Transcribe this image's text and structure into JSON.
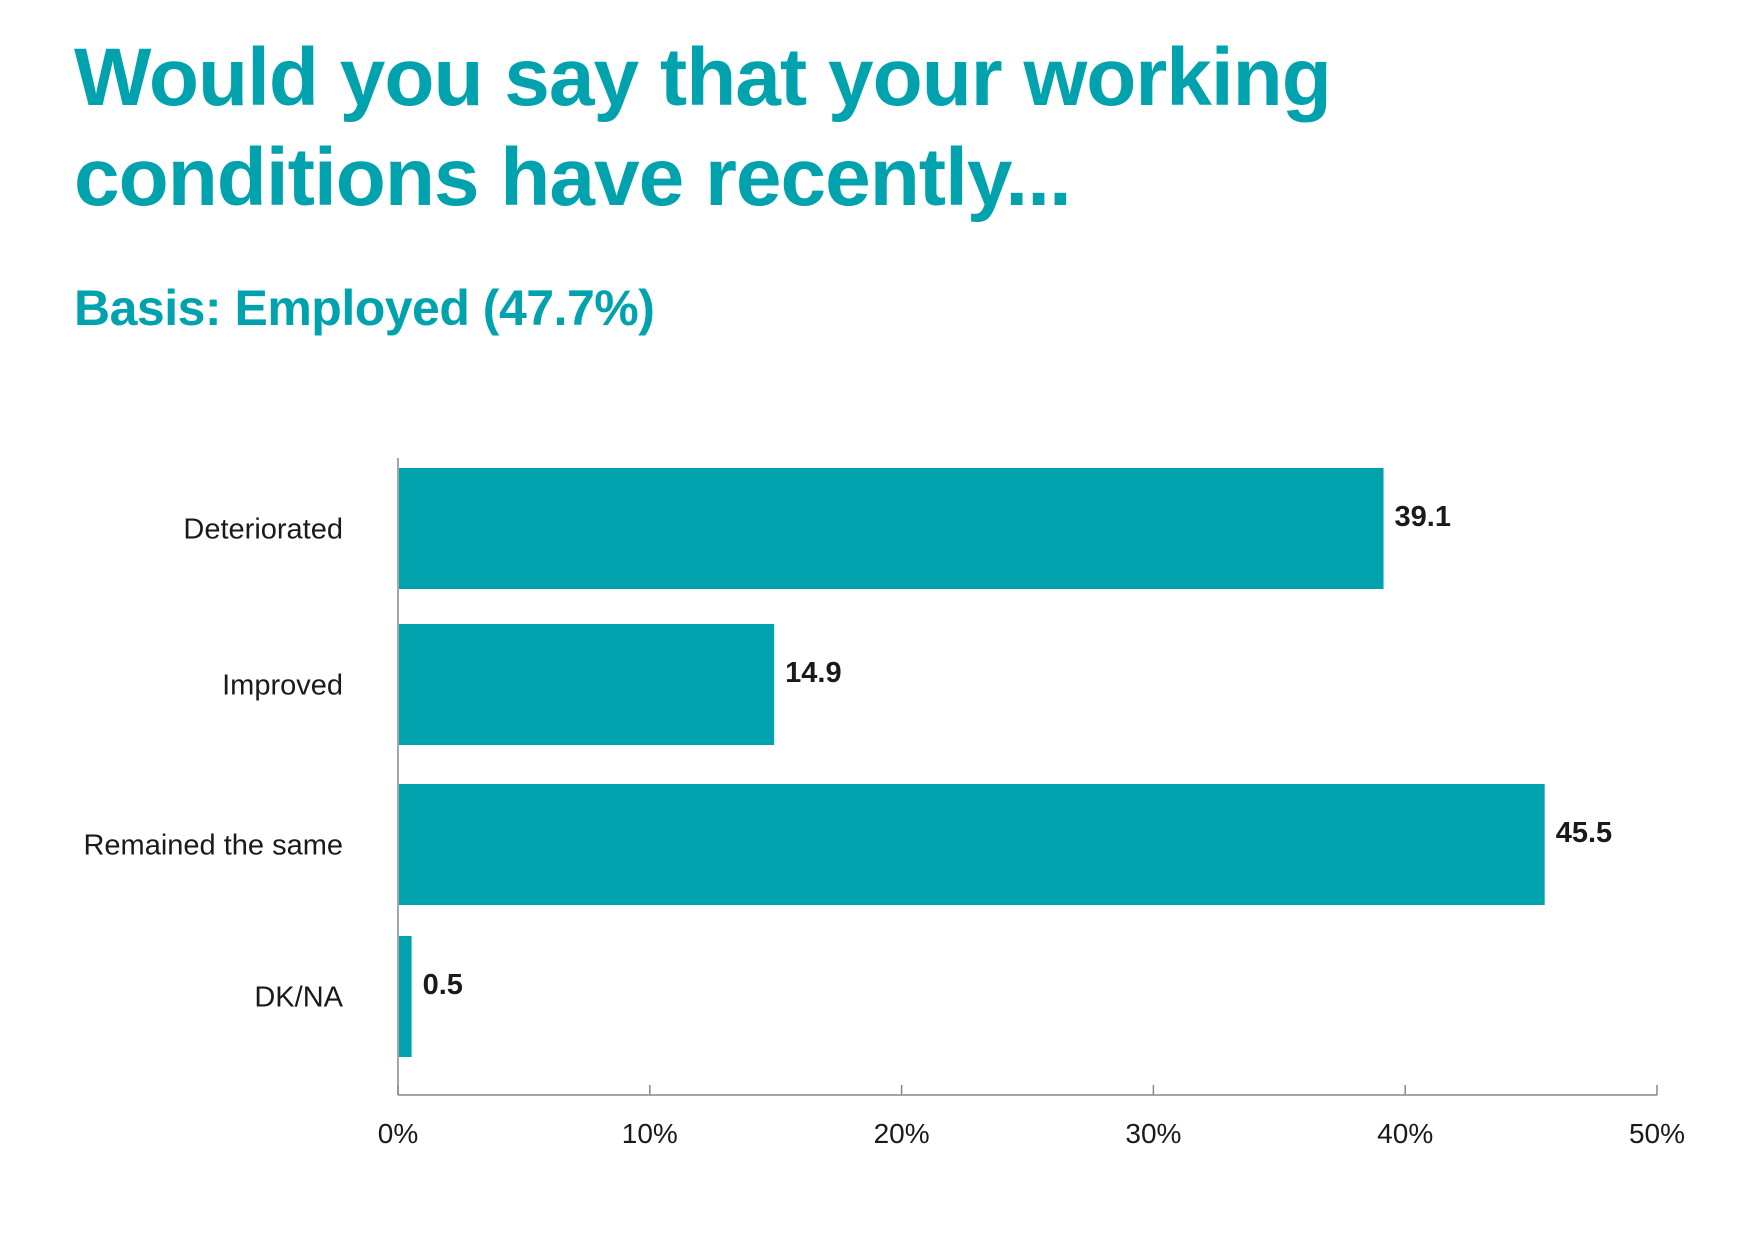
{
  "title": "Would you say that your working conditions have recently...",
  "subtitle": "Basis: Employed (47.7%)",
  "chart_data": {
    "type": "bar",
    "orientation": "horizontal",
    "title": "Would you say that your working conditions have recently...",
    "subtitle": "Basis: Employed (47.7%)",
    "categories": [
      "Deteriorated",
      "Improved",
      "Remained the same",
      "DK/NA"
    ],
    "values": [
      39.1,
      14.9,
      45.5,
      0.5
    ],
    "value_labels": [
      "39.1",
      "14.9",
      "45.5",
      "0.5"
    ],
    "xlim": [
      0,
      50
    ],
    "xticks": [
      0,
      10,
      20,
      30,
      40,
      50
    ],
    "xtick_labels": [
      "0%",
      "10%",
      "20%",
      "30%",
      "40%",
      "50%"
    ],
    "xlabel": "",
    "ylabel": "",
    "grid": false,
    "legend": "none",
    "bar_color": "#00a3ad",
    "title_color": "#00a3ad",
    "text_color": "#1a1a1a",
    "axis_color": "#888888"
  }
}
